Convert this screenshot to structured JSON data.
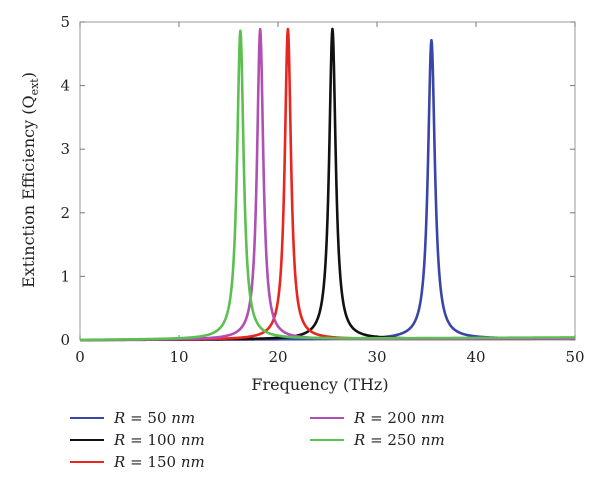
{
  "chart_data": {
    "type": "line",
    "xlabel": "Frequency (THz)",
    "ylabel": "Extinction Efficiency (Q",
    "ylabel_sub": "ext",
    "ylabel_close": ")",
    "xlim": [
      0,
      50
    ],
    "ylim": [
      0,
      5
    ],
    "xticks": [
      0,
      10,
      20,
      30,
      40,
      50
    ],
    "yticks": [
      0,
      1,
      2,
      3,
      4,
      5
    ],
    "grid": false,
    "legend_position": "bottom",
    "series": [
      {
        "name": "R = 50 nm",
        "label_var": "R",
        "label_eq": " = 50 ",
        "label_unit": "nm",
        "color": "#3b45a8",
        "peak_x": 35.5,
        "peak_y": 4.7,
        "width": 0.42,
        "baseline": 0.02
      },
      {
        "name": "R = 100 nm",
        "label_var": "R",
        "label_eq": " = 100 ",
        "label_unit": "nm",
        "color": "#111111",
        "peak_x": 25.5,
        "peak_y": 4.88,
        "width": 0.4,
        "baseline": 0.02
      },
      {
        "name": "R = 150 nm",
        "label_var": "R",
        "label_eq": " = 150 ",
        "label_unit": "nm",
        "color": "#e8261e",
        "peak_x": 21.0,
        "peak_y": 4.88,
        "width": 0.38,
        "baseline": 0.02
      },
      {
        "name": "R = 200 nm",
        "label_var": "R",
        "label_eq": " = 200 ",
        "label_unit": "nm",
        "color": "#b04fb4",
        "peak_x": 18.2,
        "peak_y": 4.88,
        "width": 0.38,
        "baseline": 0.02
      },
      {
        "name": "R = 250 nm",
        "label_var": "R",
        "label_eq": " = 250 ",
        "label_unit": "nm",
        "color": "#5cc050",
        "peak_x": 16.2,
        "peak_y": 4.85,
        "width": 0.4,
        "baseline": 0.04
      }
    ]
  }
}
